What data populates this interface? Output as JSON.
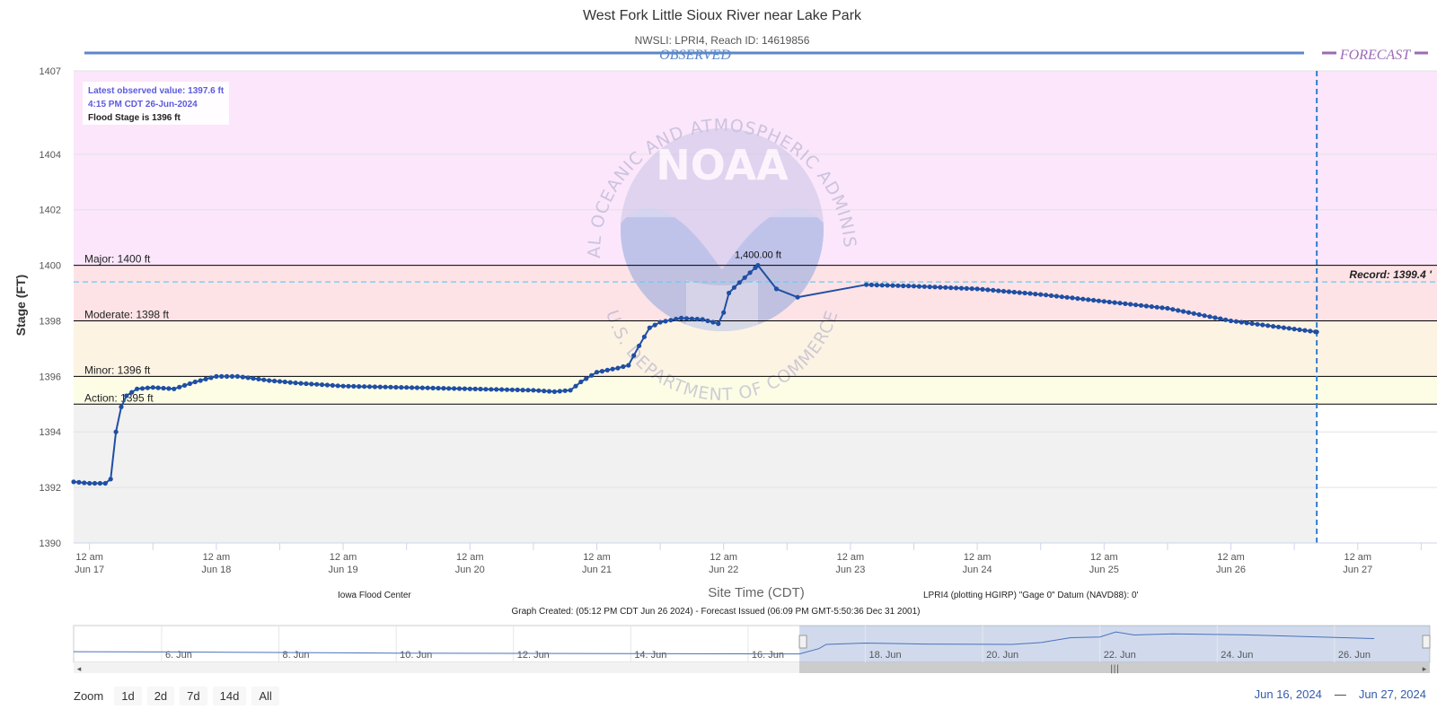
{
  "chart_data": {
    "type": "line",
    "title": "West Fork Little Sioux River near Lake Park",
    "subtitle": "NWSLI: LPRI4, Reach ID: 14619856",
    "ylabel": "Stage (FT)",
    "xlabel": "Site Time (CDT)",
    "ylim": [
      1390,
      1407
    ],
    "yticks": [
      1390,
      1392,
      1394,
      1396,
      1398,
      1400,
      1402,
      1404,
      1407
    ],
    "xlim": [
      "2024-06-16 21:00",
      "2024-06-27 15:00"
    ],
    "xticks": [
      {
        "date": "2024-06-17 00:00",
        "line1": "12 am",
        "line2": "Jun 17"
      },
      {
        "date": "2024-06-18 00:00",
        "line1": "12 am",
        "line2": "Jun 18"
      },
      {
        "date": "2024-06-19 00:00",
        "line1": "12 am",
        "line2": "Jun 19"
      },
      {
        "date": "2024-06-20 00:00",
        "line1": "12 am",
        "line2": "Jun 20"
      },
      {
        "date": "2024-06-21 00:00",
        "line1": "12 am",
        "line2": "Jun 21"
      },
      {
        "date": "2024-06-22 00:00",
        "line1": "12 am",
        "line2": "Jun 22"
      },
      {
        "date": "2024-06-23 00:00",
        "line1": "12 am",
        "line2": "Jun 23"
      },
      {
        "date": "2024-06-24 00:00",
        "line1": "12 am",
        "line2": "Jun 24"
      },
      {
        "date": "2024-06-25 00:00",
        "line1": "12 am",
        "line2": "Jun 25"
      },
      {
        "date": "2024-06-26 00:00",
        "line1": "12 am",
        "line2": "Jun 26"
      },
      {
        "date": "2024-06-27 00:00",
        "line1": "12 am",
        "line2": "Jun 27"
      }
    ],
    "observed_label": "OBSERVED",
    "forecast_label": "FORECAST",
    "forecast_divider_date": "2024-06-26 16:15",
    "bands": [
      {
        "name": "major",
        "from": 1400,
        "to": 1407,
        "color": "#fbe6fb"
      },
      {
        "name": "moderate",
        "from": 1398,
        "to": 1400,
        "color": "#fde3e6"
      },
      {
        "name": "minor",
        "from": 1396,
        "to": 1398,
        "color": "#fdf3e3"
      },
      {
        "name": "action",
        "from": 1395,
        "to": 1396,
        "color": "#fdfde6"
      },
      {
        "name": "normal",
        "from": 1390,
        "to": 1395,
        "color": "#f1f1f1"
      }
    ],
    "thresholds": [
      {
        "label": "Major: 1400 ft",
        "value": 1400
      },
      {
        "label": "Moderate: 1398 ft",
        "value": 1398
      },
      {
        "label": "Minor: 1396 ft",
        "value": 1396
      },
      {
        "label": "Action: 1395 ft",
        "value": 1395
      }
    ],
    "record": {
      "label": "Record: 1399.4 '",
      "value": 1399.4
    },
    "peak_label": {
      "text": "1,400.00 ft",
      "date": "2024-06-22 06:30",
      "value": 1400.0
    },
    "info_box": {
      "latest_line1": "Latest observed value: 1397.6 ft",
      "latest_line2": "4:15 PM CDT 26-Jun-2024",
      "flood_stage": "Flood Stage is 1396 ft"
    },
    "series": [
      {
        "points": [
          [
            "2024-06-16 21:00",
            1392.2
          ],
          [
            "2024-06-17 00:00",
            1392.15
          ],
          [
            "2024-06-17 03:00",
            1392.15
          ],
          [
            "2024-06-17 04:00",
            1392.3
          ],
          [
            "2024-06-17 05:00",
            1394.0
          ],
          [
            "2024-06-17 06:00",
            1394.9
          ],
          [
            "2024-06-17 07:00",
            1395.3
          ],
          [
            "2024-06-17 09:00",
            1395.55
          ],
          [
            "2024-06-17 12:00",
            1395.6
          ],
          [
            "2024-06-17 16:00",
            1395.55
          ],
          [
            "2024-06-17 20:00",
            1395.8
          ],
          [
            "2024-06-18 00:00",
            1396.0
          ],
          [
            "2024-06-18 04:00",
            1396.0
          ],
          [
            "2024-06-18 10:00",
            1395.85
          ],
          [
            "2024-06-18 16:00",
            1395.75
          ],
          [
            "2024-06-19 00:00",
            1395.65
          ],
          [
            "2024-06-19 12:00",
            1395.6
          ],
          [
            "2024-06-20 00:00",
            1395.55
          ],
          [
            "2024-06-20 12:00",
            1395.5
          ],
          [
            "2024-06-20 16:00",
            1395.45
          ],
          [
            "2024-06-20 19:00",
            1395.5
          ],
          [
            "2024-06-20 21:00",
            1395.8
          ],
          [
            "2024-06-21 00:00",
            1396.15
          ],
          [
            "2024-06-21 04:00",
            1396.3
          ],
          [
            "2024-06-21 06:00",
            1396.4
          ],
          [
            "2024-06-21 08:00",
            1397.1
          ],
          [
            "2024-06-21 10:00",
            1397.75
          ],
          [
            "2024-06-21 12:00",
            1397.95
          ],
          [
            "2024-06-21 16:00",
            1398.1
          ],
          [
            "2024-06-21 20:00",
            1398.05
          ],
          [
            "2024-06-21 23:00",
            1397.9
          ],
          [
            "2024-06-22 00:00",
            1398.3
          ],
          [
            "2024-06-22 01:00",
            1399.0
          ],
          [
            "2024-06-22 02:00",
            1399.2
          ],
          [
            "2024-06-22 06:30",
            1400.0
          ],
          [
            "2024-06-22 10:00",
            1399.15
          ],
          [
            "2024-06-22 14:00",
            1398.85
          ],
          [
            "2024-06-23 03:00",
            1399.3
          ],
          [
            "2024-06-23 12:00",
            1399.25
          ],
          [
            "2024-06-24 00:00",
            1399.15
          ],
          [
            "2024-06-24 12:00",
            1398.95
          ],
          [
            "2024-06-25 00:00",
            1398.7
          ],
          [
            "2024-06-25 12:00",
            1398.45
          ],
          [
            "2024-06-26 00:00",
            1398.0
          ],
          [
            "2024-06-26 16:15",
            1397.6
          ]
        ]
      }
    ],
    "footer": {
      "source": "Iowa Flood Center",
      "datum": "LPRI4 (plotting HGIRP) \"Gage 0\" Datum (NAVD88): 0'",
      "created": "Graph Created: (05:12 PM CDT Jun 26 2024) - Forecast Issued (06:09 PM GMT-5:50:36 Dec 31 2001)"
    },
    "watermark": {
      "ring_text": "NATIONAL OCEANIC AND ATMOSPHERIC ADMINISTRATION",
      "bottom_text": "U.S. DEPARTMENT OF COMMERCE",
      "logo_text": "NOAA"
    },
    "navigator": {
      "xlim": [
        "2024-06-04 12:00",
        "2024-06-27 15:00"
      ],
      "labels": [
        {
          "date": "2024-06-06 00:00",
          "text": "6. Jun"
        },
        {
          "date": "2024-06-08 00:00",
          "text": "8. Jun"
        },
        {
          "date": "2024-06-10 00:00",
          "text": "10. Jun"
        },
        {
          "date": "2024-06-12 00:00",
          "text": "12. Jun"
        },
        {
          "date": "2024-06-14 00:00",
          "text": "14. Jun"
        },
        {
          "date": "2024-06-16 00:00",
          "text": "16. Jun"
        },
        {
          "date": "2024-06-18 00:00",
          "text": "18. Jun"
        },
        {
          "date": "2024-06-20 00:00",
          "text": "20. Jun"
        },
        {
          "date": "2024-06-22 00:00",
          "text": "22. Jun"
        },
        {
          "date": "2024-06-24 00:00",
          "text": "24. Jun"
        },
        {
          "date": "2024-06-26 00:00",
          "text": "26. Jun"
        }
      ],
      "selected": [
        "2024-06-16 21:00",
        "2024-06-27 15:00"
      ],
      "points": [
        [
          "2024-06-04 12:00",
          1392.9
        ],
        [
          "2024-06-06 00:00",
          1392.8
        ],
        [
          "2024-06-08 00:00",
          1392.6
        ],
        [
          "2024-06-10 00:00",
          1392.4
        ],
        [
          "2024-06-12 00:00",
          1392.3
        ],
        [
          "2024-06-14 00:00",
          1392.2
        ],
        [
          "2024-06-16 21:00",
          1392.1
        ],
        [
          "2024-06-17 05:00",
          1394.0
        ],
        [
          "2024-06-17 08:00",
          1395.5
        ],
        [
          "2024-06-18 00:00",
          1396.0
        ],
        [
          "2024-06-19 00:00",
          1395.65
        ],
        [
          "2024-06-20 12:00",
          1395.5
        ],
        [
          "2024-06-21 00:00",
          1396.2
        ],
        [
          "2024-06-21 12:00",
          1397.95
        ],
        [
          "2024-06-22 00:00",
          1398.2
        ],
        [
          "2024-06-22 06:30",
          1400.0
        ],
        [
          "2024-06-22 14:00",
          1398.9
        ],
        [
          "2024-06-23 06:00",
          1399.3
        ],
        [
          "2024-06-24 12:00",
          1398.95
        ],
        [
          "2024-06-26 16:15",
          1397.6
        ]
      ]
    }
  },
  "zoom": {
    "label": "Zoom",
    "buttons": [
      "1d",
      "2d",
      "7d",
      "14d",
      "All"
    ]
  },
  "range": {
    "from": "Jun 16, 2024",
    "sep": "—",
    "to": "Jun 27, 2024"
  }
}
